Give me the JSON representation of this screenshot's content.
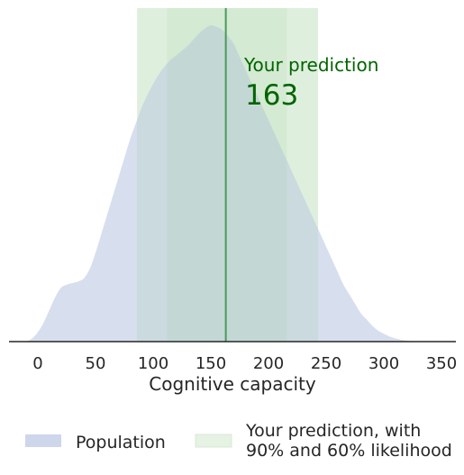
{
  "chart_data": {
    "type": "area",
    "xlabel": "Cognitive capacity",
    "ylabel": "",
    "xlim": [
      -25,
      360
    ],
    "ylim": [
      0,
      1
    ],
    "x_ticks": [
      0,
      50,
      100,
      150,
      200,
      250,
      300,
      350
    ],
    "grid": false,
    "legend_placement": "bottom",
    "series": [
      {
        "name": "Population",
        "color": "#cdd6ea",
        "x": [
          -10,
          -5,
          0,
          5,
          10,
          15,
          20,
          25,
          30,
          35,
          40,
          45,
          50,
          55,
          60,
          65,
          70,
          75,
          80,
          85,
          90,
          95,
          100,
          105,
          110,
          115,
          120,
          125,
          130,
          135,
          140,
          145,
          150,
          155,
          160,
          165,
          170,
          175,
          180,
          185,
          190,
          195,
          200,
          205,
          210,
          215,
          220,
          225,
          230,
          235,
          240,
          245,
          250,
          255,
          260,
          265,
          270,
          275,
          280,
          285,
          290,
          295,
          300,
          305,
          310,
          315,
          320,
          325,
          330,
          335
        ],
        "y": [
          0.0,
          0.01,
          0.03,
          0.06,
          0.1,
          0.14,
          0.17,
          0.18,
          0.185,
          0.19,
          0.2,
          0.23,
          0.28,
          0.34,
          0.4,
          0.46,
          0.52,
          0.58,
          0.64,
          0.69,
          0.74,
          0.78,
          0.815,
          0.845,
          0.87,
          0.89,
          0.905,
          0.92,
          0.935,
          0.955,
          0.975,
          0.99,
          1.0,
          0.995,
          0.985,
          0.965,
          0.94,
          0.9,
          0.86,
          0.82,
          0.78,
          0.74,
          0.7,
          0.66,
          0.62,
          0.58,
          0.54,
          0.5,
          0.46,
          0.42,
          0.38,
          0.34,
          0.3,
          0.26,
          0.22,
          0.18,
          0.15,
          0.12,
          0.09,
          0.07,
          0.05,
          0.035,
          0.025,
          0.016,
          0.01,
          0.006,
          0.003,
          0.0015,
          0.0005,
          0.0
        ]
      }
    ],
    "bands": [
      {
        "likelihood": "90%",
        "range": [
          86,
          243
        ],
        "color": "#e6f2e4"
      },
      {
        "likelihood": "60%",
        "range": [
          112,
          216
        ],
        "color": "#e6f2e4"
      }
    ],
    "prediction": {
      "value": 163,
      "value_label": "163",
      "label": "Your prediction",
      "line_color": "#4a9a5c",
      "text_color": "#006400"
    },
    "legend": [
      {
        "label": "Population",
        "color": "#cdd6ea"
      },
      {
        "label_line1": "Your prediction, with",
        "label_line2": "90% and 60% likelihood",
        "color": "#e6f2e4"
      }
    ]
  }
}
